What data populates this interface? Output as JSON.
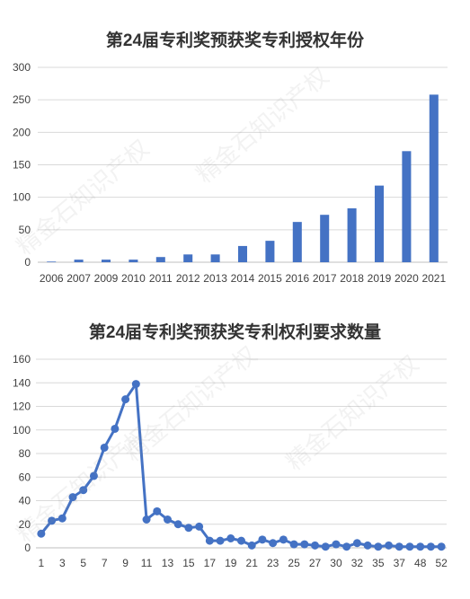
{
  "watermark": "精金石知识产权",
  "chart_data": [
    {
      "type": "bar",
      "title": "第24届专利奖预获奖专利授权年份",
      "xlabel": "",
      "ylabel": "",
      "ylim": [
        0,
        300
      ],
      "yticks": [
        "0",
        "50",
        "100",
        "150",
        "200",
        "250",
        "300"
      ],
      "grid": true,
      "color": "#4472c4",
      "categories": [
        "2006",
        "2007",
        "2009",
        "2010",
        "2011",
        "2012",
        "2013",
        "2014",
        "2015",
        "2016",
        "2017",
        "2018",
        "2019",
        "2020",
        "2021"
      ],
      "values": [
        1,
        4,
        4,
        4,
        8,
        12,
        12,
        25,
        33,
        62,
        73,
        83,
        118,
        171,
        258
      ]
    },
    {
      "type": "line",
      "title": "第24届专利奖预获奖专利权利要求数量",
      "xlabel": "",
      "ylabel": "",
      "ylim": [
        0,
        160
      ],
      "yticks": [
        "0",
        "20",
        "40",
        "60",
        "80",
        "100",
        "120",
        "140",
        "160"
      ],
      "grid": true,
      "color": "#4472c4",
      "x": [
        "1",
        "2",
        "3",
        "4",
        "5",
        "6",
        "7",
        "8",
        "9",
        "10",
        "11",
        "12",
        "13",
        "14",
        "15",
        "16",
        "17",
        "18",
        "19",
        "20",
        "21",
        "22",
        "23",
        "24",
        "25",
        "26",
        "27",
        "28",
        "30",
        "31",
        "32",
        "33",
        "35",
        "36",
        "37",
        "38",
        "48",
        "51",
        "52"
      ],
      "xticks_shown": [
        "1",
        "3",
        "5",
        "7",
        "9",
        "11",
        "13",
        "15",
        "17",
        "19",
        "21",
        "23",
        "25",
        "27",
        "30",
        "32",
        "35",
        "37",
        "48",
        "52"
      ],
      "values": [
        12,
        23,
        25,
        43,
        49,
        61,
        85,
        101,
        126,
        139,
        24,
        31,
        24,
        20,
        17,
        18,
        6,
        6,
        8,
        6,
        2,
        7,
        4,
        7,
        3,
        3,
        2,
        1,
        3,
        1,
        4,
        2,
        1,
        2,
        1,
        1,
        1,
        1,
        1
      ]
    }
  ]
}
